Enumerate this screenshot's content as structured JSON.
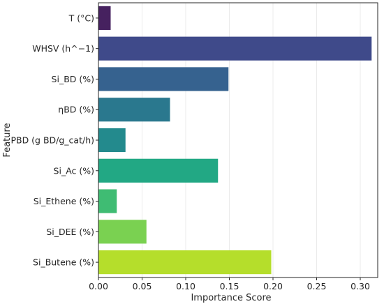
{
  "chart_data": {
    "type": "bar",
    "orientation": "horizontal",
    "categories": [
      "T (°C)",
      "WHSV (h^−1)",
      "Si_BD (%)",
      "ηBD (%)",
      "PBD (g BD/g_cat/h)",
      "Si_Ac (%)",
      "Si_Ethene (%)",
      "Si_DEE (%)",
      "Si_Butene (%)"
    ],
    "values": [
      0.014,
      0.313,
      0.149,
      0.082,
      0.031,
      0.137,
      0.021,
      0.055,
      0.198
    ],
    "colors": [
      "#46215f",
      "#3f4a8a",
      "#36628f",
      "#2a788e",
      "#238a8d",
      "#22a884",
      "#3fbc73",
      "#7ad151",
      "#b5de2b"
    ],
    "xlabel": "Importance Score",
    "ylabel": "Feature",
    "xlim": [
      0,
      0.32
    ],
    "xticks": [
      0.0,
      0.05,
      0.1,
      0.15,
      0.2,
      0.25,
      0.3
    ],
    "xtick_labels": [
      "0.00",
      "0.05",
      "0.10",
      "0.15",
      "0.20",
      "0.25",
      "0.30"
    ],
    "grid": "vertical",
    "frame_color": "#262626",
    "grid_color": "#ebebeb"
  }
}
